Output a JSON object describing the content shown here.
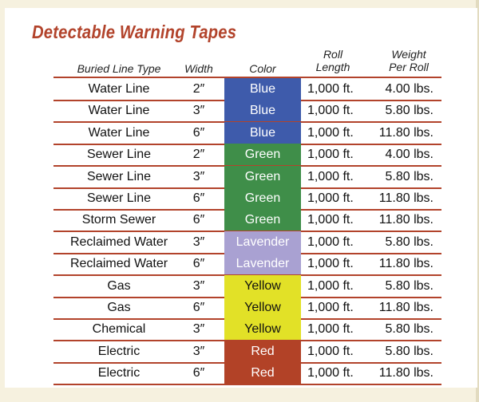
{
  "title": "Detectable Warning Tapes",
  "headers": {
    "type": "Buried Line Type",
    "width": "Width",
    "color": "Color",
    "roll_line1": "Roll",
    "roll_line2": "Length",
    "weight_line1": "Weight",
    "weight_line2": "Per Roll"
  },
  "colors": {
    "Blue": "#3e5bab",
    "Green": "#3f8e49",
    "Lavender": "#a9a1d2",
    "Yellow": "#e2e127",
    "Red": "#b24227",
    "accent_rule": "#b2432b",
    "background": "#f6f1df"
  },
  "rows": [
    {
      "type": "Water Line",
      "width": "2″",
      "color": "Blue",
      "length": "1,000 ft.",
      "weight": "4.00 lbs."
    },
    {
      "type": "Water Line",
      "width": "3″",
      "color": "Blue",
      "length": "1,000 ft.",
      "weight": "5.80 lbs."
    },
    {
      "type": "Water Line",
      "width": "6″",
      "color": "Blue",
      "length": "1,000 ft.",
      "weight": "11.80 lbs."
    },
    {
      "type": "Sewer Line",
      "width": "2″",
      "color": "Green",
      "length": "1,000 ft.",
      "weight": "4.00 lbs."
    },
    {
      "type": "Sewer Line",
      "width": "3″",
      "color": "Green",
      "length": "1,000 ft.",
      "weight": "5.80 lbs."
    },
    {
      "type": "Sewer Line",
      "width": "6″",
      "color": "Green",
      "length": "1,000 ft.",
      "weight": "11.80 lbs."
    },
    {
      "type": "Storm Sewer",
      "width": "6″",
      "color": "Green",
      "length": "1,000 ft.",
      "weight": "11.80 lbs."
    },
    {
      "type": "Reclaimed Water",
      "width": "3″",
      "color": "Lavender",
      "length": "1,000 ft.",
      "weight": "5.80 lbs."
    },
    {
      "type": "Reclaimed Water",
      "width": "6″",
      "color": "Lavender",
      "length": "1,000 ft.",
      "weight": "11.80 lbs."
    },
    {
      "type": "Gas",
      "width": "3″",
      "color": "Yellow",
      "length": "1,000 ft.",
      "weight": "5.80 lbs."
    },
    {
      "type": "Gas",
      "width": "6″",
      "color": "Yellow",
      "length": "1,000 ft.",
      "weight": "11.80 lbs."
    },
    {
      "type": "Chemical",
      "width": "3″",
      "color": "Yellow",
      "length": "1,000 ft.",
      "weight": "5.80 lbs."
    },
    {
      "type": "Electric",
      "width": "3″",
      "color": "Red",
      "length": "1,000 ft.",
      "weight": "5.80 lbs."
    },
    {
      "type": "Electric",
      "width": "6″",
      "color": "Red",
      "length": "1,000 ft.",
      "weight": "11.80 lbs."
    }
  ]
}
